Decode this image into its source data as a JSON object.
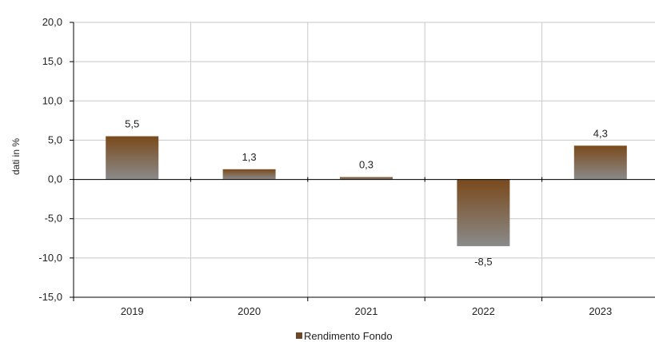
{
  "chart_data": {
    "type": "bar",
    "categories": [
      "2019",
      "2020",
      "2021",
      "2022",
      "2023"
    ],
    "series": [
      {
        "name": "Rendimento Fondo",
        "values": [
          5.5,
          1.3,
          0.3,
          -8.5,
          4.3
        ]
      }
    ],
    "data_labels": [
      "5,5",
      "1,3",
      "0,3",
      "-8,5",
      "4,3"
    ],
    "y_ticks": [
      20,
      15,
      10,
      5,
      0,
      -5,
      -10,
      -15
    ],
    "y_tick_labels": [
      "20,0",
      "15,0",
      "10,0",
      "5,0",
      "0,0",
      "-5,0",
      "-10,0",
      "-15,0"
    ],
    "ylabel": "dati in %",
    "xlabel": "",
    "title": "",
    "ylim": [
      -15,
      20
    ],
    "grid": true,
    "legend_position": "bottom",
    "colors": {
      "bar_top": "#7a4a1c",
      "bar_bottom": "#8a8a8a",
      "grid": "#c8c8c8",
      "axis": "#000000"
    }
  }
}
